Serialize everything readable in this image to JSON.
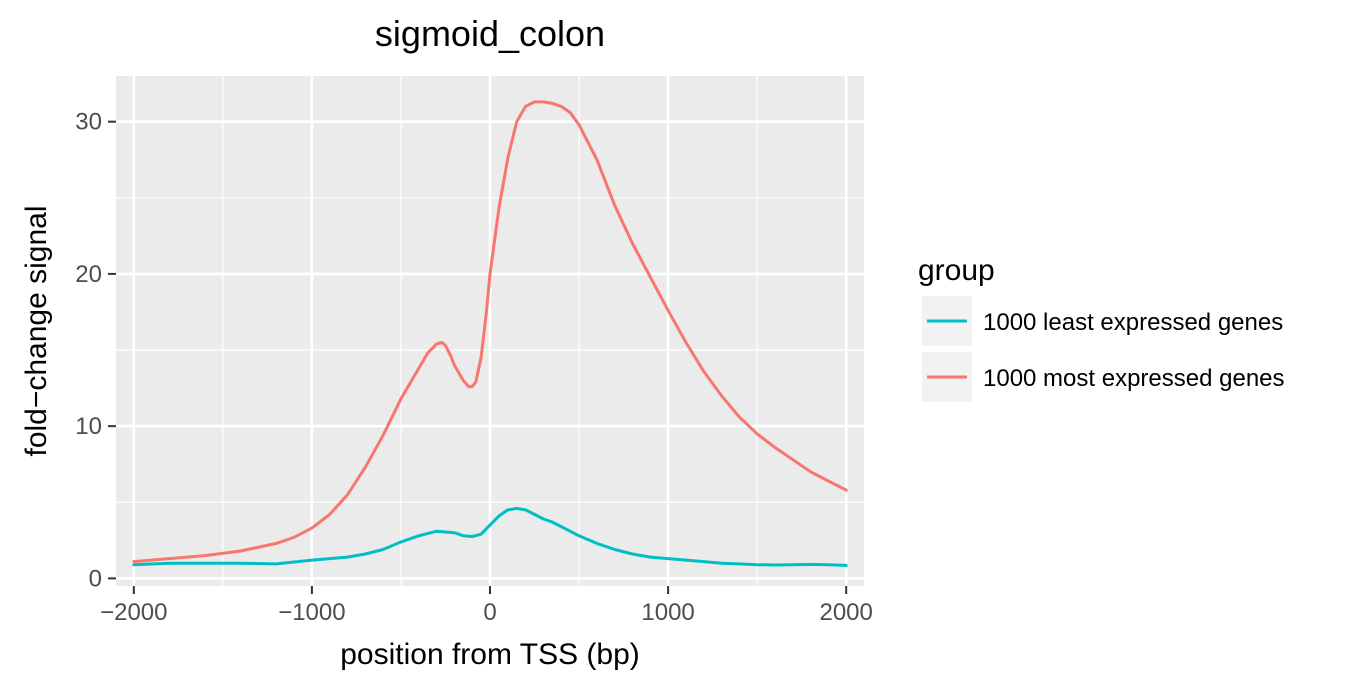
{
  "chart_data": {
    "type": "line",
    "title": "sigmoid_colon",
    "xlabel": "position from TSS (bp)",
    "ylabel": "fold−change signal",
    "xlim": [
      -2100,
      2100
    ],
    "ylim": [
      -0.5,
      33
    ],
    "x_ticks": [
      -2000,
      -1000,
      0,
      1000,
      2000
    ],
    "x_tick_labels": [
      "−2000",
      "−1000",
      "0",
      "1000",
      "2000"
    ],
    "y_ticks": [
      0,
      10,
      20,
      30
    ],
    "y_tick_labels": [
      "0",
      "10",
      "20",
      "30"
    ],
    "grid": true,
    "legend": {
      "title": "group",
      "position": "right",
      "entries": [
        {
          "label": "1000 least expressed genes",
          "color": "#00BFC4"
        },
        {
          "label": "1000 most expressed genes",
          "color": "#F8766D"
        }
      ]
    },
    "series": [
      {
        "name": "1000 least expressed genes",
        "color": "#00BFC4",
        "x": [
          -2000,
          -1800,
          -1600,
          -1400,
          -1200,
          -1000,
          -800,
          -700,
          -600,
          -500,
          -400,
          -300,
          -200,
          -150,
          -100,
          -50,
          0,
          50,
          100,
          150,
          200,
          250,
          300,
          350,
          400,
          450,
          500,
          600,
          700,
          800,
          900,
          1000,
          1100,
          1200,
          1300,
          1400,
          1500,
          1600,
          1700,
          1800,
          1900,
          2000
        ],
        "y": [
          0.9,
          1.0,
          1.0,
          1.0,
          0.95,
          1.2,
          1.4,
          1.6,
          1.9,
          2.4,
          2.8,
          3.1,
          3.0,
          2.8,
          2.75,
          2.9,
          3.5,
          4.1,
          4.5,
          4.6,
          4.5,
          4.2,
          3.9,
          3.7,
          3.4,
          3.1,
          2.8,
          2.3,
          1.9,
          1.6,
          1.4,
          1.3,
          1.2,
          1.1,
          1.0,
          0.95,
          0.9,
          0.88,
          0.9,
          0.92,
          0.9,
          0.85
        ]
      },
      {
        "name": "1000 most expressed genes",
        "color": "#F8766D",
        "x": [
          -2000,
          -1800,
          -1600,
          -1400,
          -1200,
          -1100,
          -1000,
          -900,
          -800,
          -700,
          -600,
          -500,
          -400,
          -350,
          -300,
          -270,
          -250,
          -220,
          -200,
          -150,
          -120,
          -100,
          -80,
          -50,
          -20,
          0,
          50,
          100,
          150,
          200,
          250,
          300,
          350,
          400,
          450,
          500,
          600,
          700,
          800,
          900,
          1000,
          1100,
          1200,
          1300,
          1400,
          1500,
          1600,
          1700,
          1800,
          1900,
          2000
        ],
        "y": [
          1.1,
          1.3,
          1.5,
          1.8,
          2.3,
          2.7,
          3.3,
          4.2,
          5.5,
          7.3,
          9.4,
          11.8,
          13.8,
          14.8,
          15.4,
          15.5,
          15.3,
          14.6,
          14.0,
          13.0,
          12.6,
          12.6,
          12.9,
          14.5,
          17.5,
          20.0,
          24.3,
          27.6,
          30.0,
          31.0,
          31.3,
          31.3,
          31.2,
          31.0,
          30.6,
          29.8,
          27.5,
          24.5,
          22.0,
          19.8,
          17.6,
          15.5,
          13.6,
          12.0,
          10.6,
          9.5,
          8.6,
          7.8,
          7.0,
          6.4,
          5.8
        ]
      }
    ]
  }
}
